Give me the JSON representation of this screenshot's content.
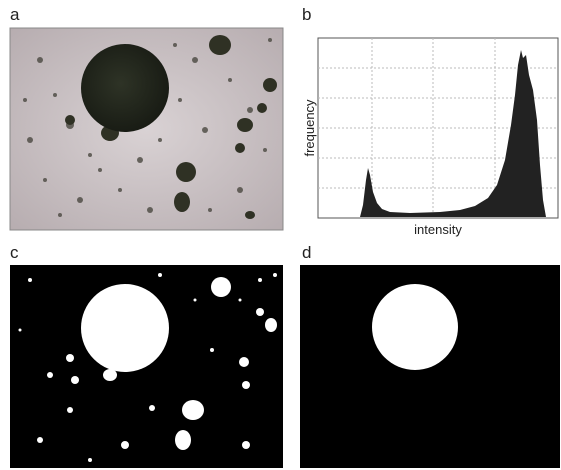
{
  "panels": [
    {
      "label": "a"
    },
    {
      "label": "b",
      "y_label": "frequency",
      "x_label": "intensity"
    },
    {
      "label": "c"
    },
    {
      "label": "d"
    }
  ]
}
